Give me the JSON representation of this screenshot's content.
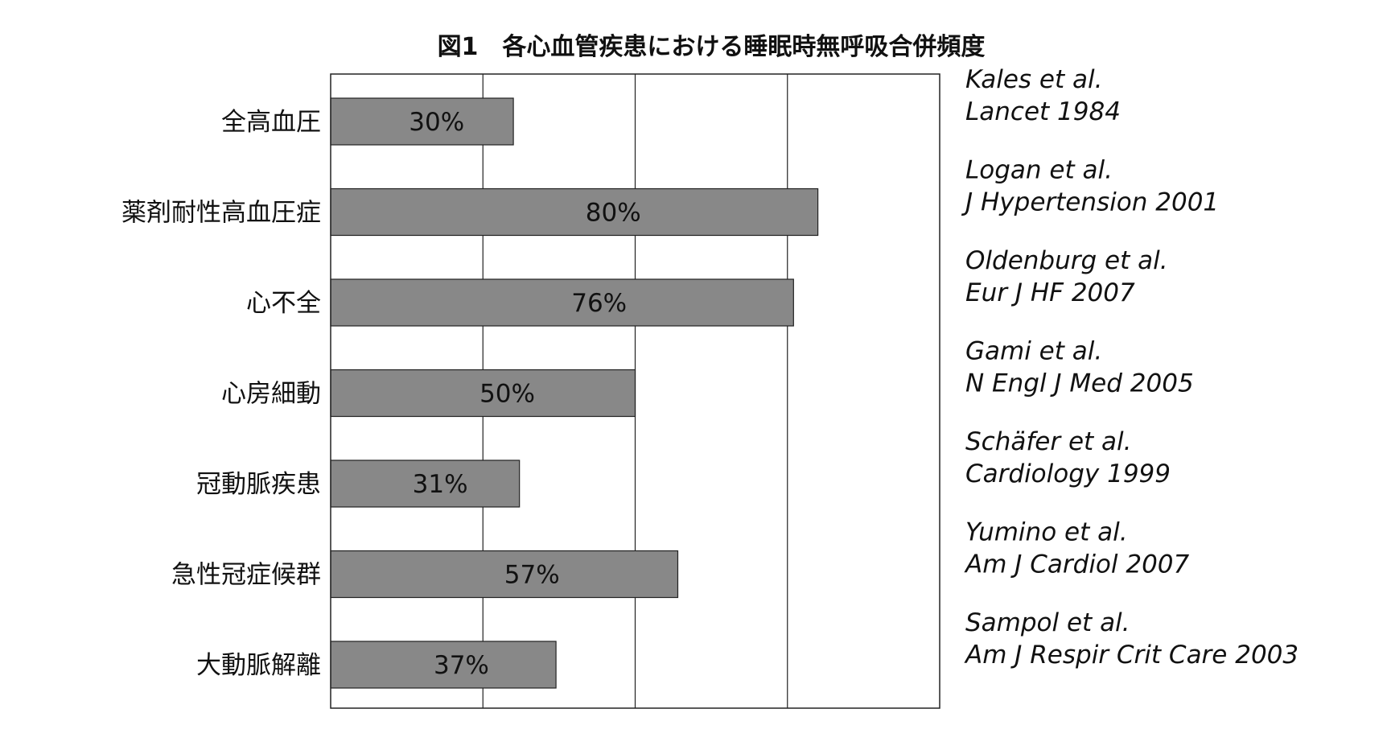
{
  "chart_data": {
    "type": "bar",
    "orientation": "horizontal",
    "title": "図1　各心血管疾患における睡眠時無呼吸合併頻度",
    "xlim": [
      0,
      100
    ],
    "grid": true,
    "bar_color": "#888888",
    "categories": [
      "全高血圧",
      "薬剤耐性高血圧症",
      "心不全",
      "心房細動",
      "冠動脈疾患",
      "急性冠症候群",
      "大動脈解離"
    ],
    "values": [
      30,
      80,
      76,
      50,
      31,
      57,
      37
    ],
    "value_labels": [
      "30%",
      "80%",
      "76%",
      "50%",
      "31%",
      "57%",
      "37%"
    ],
    "references": [
      [
        "Kales et al.",
        "Lancet 1984"
      ],
      [
        "Logan et al.",
        "J Hypertension 2001"
      ],
      [
        "Oldenburg et al.",
        "Eur J HF 2007"
      ],
      [
        "Gami et al.",
        "N Engl J Med 2005"
      ],
      [
        "Schäfer et al.",
        "Cardiology 1999"
      ],
      [
        "Yumino et al.",
        "Am J Cardiol 2007"
      ],
      [
        "Sampol et al.",
        "Am J Respir Crit Care 2003"
      ]
    ]
  }
}
